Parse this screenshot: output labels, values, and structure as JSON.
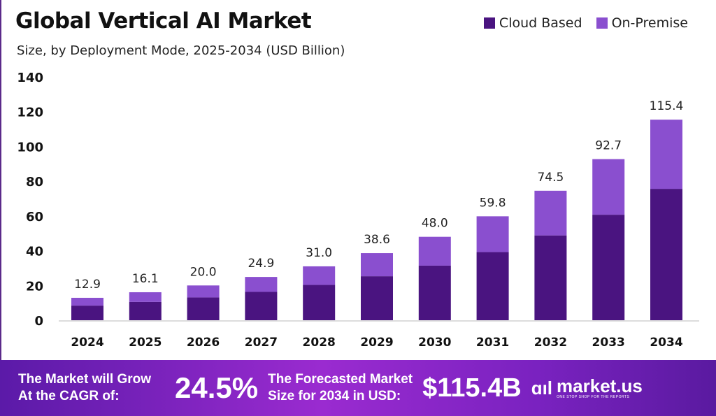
{
  "chart_data": {
    "type": "bar",
    "stacked": true,
    "title": "Global Vertical AI Market",
    "subtitle": "Size, by Deployment Mode, 2025-2034 (USD Billion)",
    "categories": [
      "2024",
      "2025",
      "2026",
      "2027",
      "2028",
      "2029",
      "2030",
      "2031",
      "2032",
      "2033",
      "2034"
    ],
    "series": [
      {
        "name": "Cloud Based",
        "color": "#4a1480",
        "values": [
          8.4,
          10.5,
          13.1,
          16.3,
          20.3,
          25.3,
          31.4,
          39.2,
          48.8,
          60.7,
          75.6
        ]
      },
      {
        "name": "On-Premise",
        "color": "#8a4fcf",
        "values": [
          4.5,
          5.6,
          6.9,
          8.6,
          10.7,
          13.3,
          16.6,
          20.6,
          25.7,
          32.0,
          39.8
        ]
      }
    ],
    "totals": [
      "12.9",
      "16.1",
      "20.0",
      "24.9",
      "31.0",
      "38.6",
      "48.0",
      "59.8",
      "74.5",
      "92.7",
      "115.4"
    ],
    "ylim": [
      0,
      140
    ],
    "yticks": [
      0,
      20,
      40,
      60,
      80,
      100,
      120,
      140
    ],
    "grid": false,
    "legend": "top-right"
  },
  "footer": {
    "cagr_label_1": "The Market will Grow",
    "cagr_label_2": "At the CAGR of:",
    "cagr_value": "24.5%",
    "forecast_label_1": "The Forecasted Market",
    "forecast_label_2": "Size for 2034 in USD:",
    "forecast_value": "$115.4B",
    "logo_text": "market.us",
    "logo_tagline": "ONE STOP SHOP FOR THE REPORTS"
  }
}
